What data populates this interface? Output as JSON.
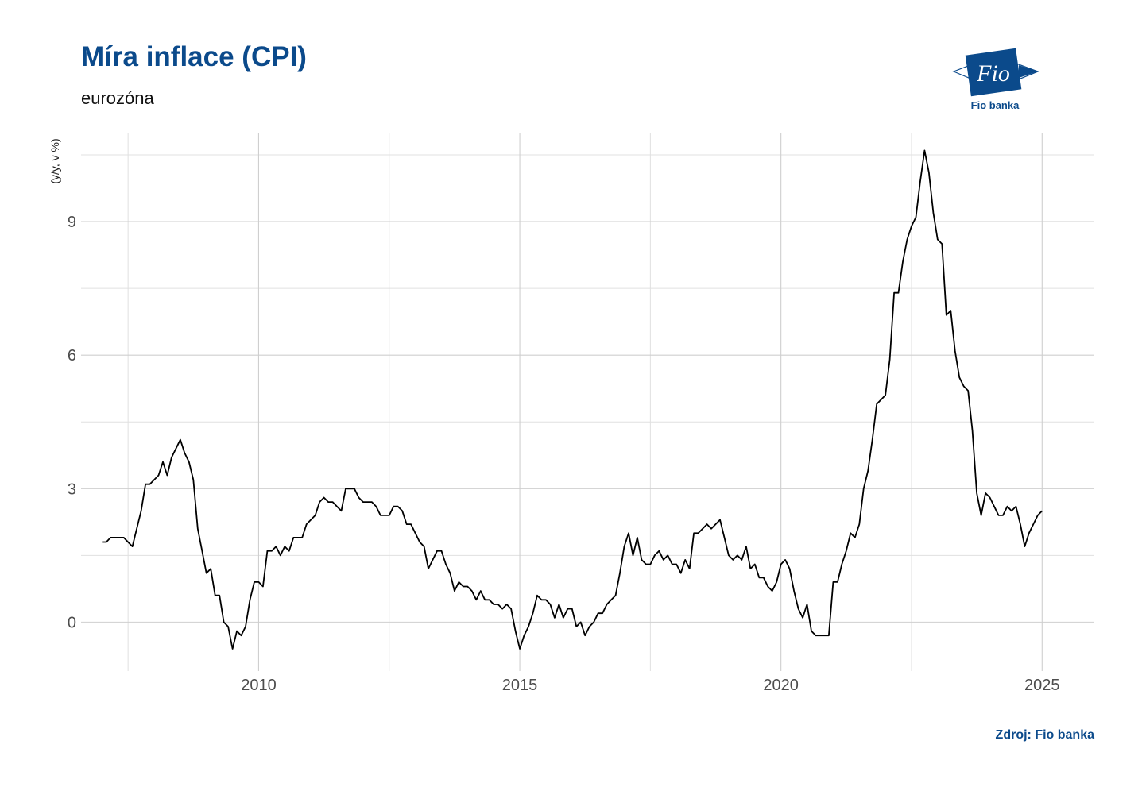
{
  "header": {
    "title": "Míra inflace (CPI)",
    "subtitle": "eurozóna"
  },
  "logo": {
    "icon": "fio-logo-icon",
    "mark_text": "Fio",
    "caption": "Fio banka",
    "color": "#0b4a8b"
  },
  "footer": {
    "source": "Zdroj: Fio banka"
  },
  "chart_data": {
    "type": "line",
    "title": "Míra inflace (CPI)",
    "subtitle": "eurozóna",
    "xlabel": "",
    "ylabel": "(y/y, v %)",
    "xlim": [
      2006.6,
      2026.0
    ],
    "ylim": [
      -1.1,
      11.0
    ],
    "x_ticks": [
      2010,
      2015,
      2020,
      2025
    ],
    "y_ticks": [
      0,
      3,
      6,
      9
    ],
    "grid": true,
    "legend": "none",
    "line_color": "#000000",
    "series": [
      {
        "start": "2007-01",
        "frequency": "monthly",
        "values": [
          1.8,
          1.8,
          1.9,
          1.9,
          1.9,
          1.9,
          1.8,
          1.7,
          2.1,
          2.5,
          3.1,
          3.1,
          3.2,
          3.3,
          3.6,
          3.3,
          3.7,
          3.9,
          4.1,
          3.8,
          3.6,
          3.2,
          2.1,
          1.6,
          1.1,
          1.2,
          0.6,
          0.6,
          0.0,
          -0.1,
          -0.6,
          -0.2,
          -0.3,
          -0.1,
          0.5,
          0.9,
          0.9,
          0.8,
          1.6,
          1.6,
          1.7,
          1.5,
          1.7,
          1.6,
          1.9,
          1.9,
          1.9,
          2.2,
          2.3,
          2.4,
          2.7,
          2.8,
          2.7,
          2.7,
          2.6,
          2.5,
          3.0,
          3.0,
          3.0,
          2.8,
          2.7,
          2.7,
          2.7,
          2.6,
          2.4,
          2.4,
          2.4,
          2.6,
          2.6,
          2.5,
          2.2,
          2.2,
          2.0,
          1.8,
          1.7,
          1.2,
          1.4,
          1.6,
          1.6,
          1.3,
          1.1,
          0.7,
          0.9,
          0.8,
          0.8,
          0.7,
          0.5,
          0.7,
          0.5,
          0.5,
          0.4,
          0.4,
          0.3,
          0.4,
          0.3,
          -0.2,
          -0.6,
          -0.3,
          -0.1,
          0.2,
          0.6,
          0.5,
          0.5,
          0.4,
          0.1,
          0.4,
          0.1,
          0.3,
          0.3,
          -0.1,
          0.0,
          -0.3,
          -0.1,
          0.0,
          0.2,
          0.2,
          0.4,
          0.5,
          0.6,
          1.1,
          1.7,
          2.0,
          1.5,
          1.9,
          1.4,
          1.3,
          1.3,
          1.5,
          1.6,
          1.4,
          1.5,
          1.3,
          1.3,
          1.1,
          1.4,
          1.2,
          2.0,
          2.0,
          2.1,
          2.2,
          2.1,
          2.2,
          2.3,
          1.9,
          1.5,
          1.4,
          1.5,
          1.4,
          1.7,
          1.2,
          1.3,
          1.0,
          1.0,
          0.8,
          0.7,
          0.9,
          1.3,
          1.4,
          1.2,
          0.7,
          0.3,
          0.1,
          0.4,
          -0.2,
          -0.3,
          -0.3,
          -0.3,
          -0.3,
          0.9,
          0.9,
          1.3,
          1.6,
          2.0,
          1.9,
          2.2,
          3.0,
          3.4,
          4.1,
          4.9,
          5.0,
          5.1,
          5.9,
          7.4,
          7.4,
          8.1,
          8.6,
          8.9,
          9.1,
          9.9,
          10.6,
          10.1,
          9.2,
          8.6,
          8.5,
          6.9,
          7.0,
          6.1,
          5.5,
          5.3,
          5.2,
          4.3,
          2.9,
          2.4,
          2.9,
          2.8,
          2.6,
          2.4,
          2.4,
          2.6,
          2.5,
          2.6,
          2.2,
          1.7,
          2.0,
          2.2,
          2.4,
          2.5
        ]
      }
    ]
  }
}
